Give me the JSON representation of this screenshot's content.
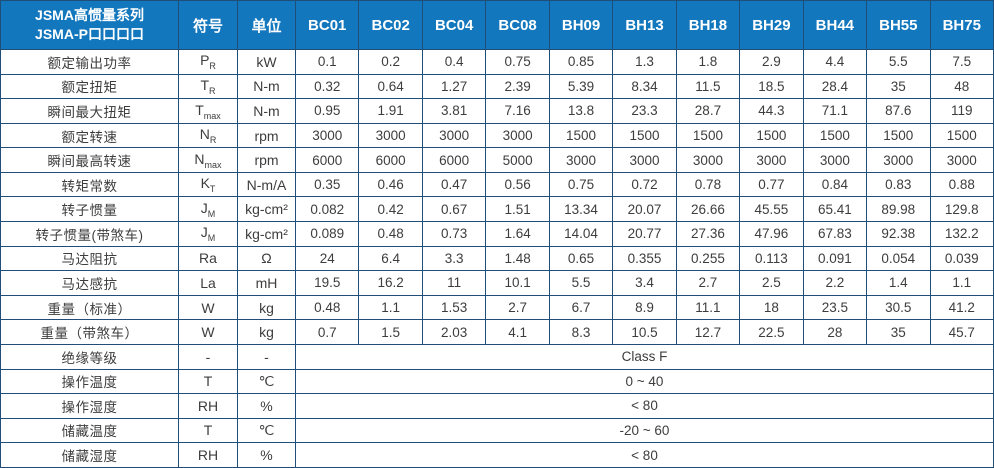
{
  "table": {
    "colors": {
      "header_bg": "#1377bd",
      "border": "#1f4e79",
      "text": "#3d3d3d"
    },
    "header": {
      "title_line1": "JSMA高惯量系列",
      "title_line2": "JSMA-P口口口口",
      "symbol_col": "符号",
      "unit_col": "单位",
      "models": [
        "BC01",
        "BC02",
        "BC04",
        "BC08",
        "BH09",
        "BH13",
        "BH18",
        "BH29",
        "BH44",
        "BH55",
        "BH75"
      ]
    },
    "rows": [
      {
        "label": "额定输出功率",
        "symbol": "P",
        "sub": "R",
        "unit": "kW",
        "values": [
          "0.1",
          "0.2",
          "0.4",
          "0.75",
          "0.85",
          "1.3",
          "1.8",
          "2.9",
          "4.4",
          "5.5",
          "7.5"
        ]
      },
      {
        "label": "额定扭矩",
        "symbol": "T",
        "sub": "R",
        "unit": "N-m",
        "values": [
          "0.32",
          "0.64",
          "1.27",
          "2.39",
          "5.39",
          "8.34",
          "11.5",
          "18.5",
          "28.4",
          "35",
          "48"
        ]
      },
      {
        "label": "瞬间最大扭矩",
        "symbol": "T",
        "sub": "max",
        "unit": "N-m",
        "values": [
          "0.95",
          "1.91",
          "3.81",
          "7.16",
          "13.8",
          "23.3",
          "28.7",
          "44.3",
          "71.1",
          "87.6",
          "119"
        ]
      },
      {
        "label": "额定转速",
        "symbol": "N",
        "sub": "R",
        "unit": "rpm",
        "values": [
          "3000",
          "3000",
          "3000",
          "3000",
          "1500",
          "1500",
          "1500",
          "1500",
          "1500",
          "1500",
          "1500"
        ]
      },
      {
        "label": "瞬间最高转速",
        "symbol": "N",
        "sub": "max",
        "unit": "rpm",
        "values": [
          "6000",
          "6000",
          "6000",
          "5000",
          "3000",
          "3000",
          "3000",
          "3000",
          "3000",
          "3000",
          "3000"
        ]
      },
      {
        "label": "转矩常数",
        "symbol": "K",
        "sub": "T",
        "unit": "N-m/A",
        "values": [
          "0.35",
          "0.46",
          "0.47",
          "0.56",
          "0.75",
          "0.72",
          "0.78",
          "0.77",
          "0.84",
          "0.83",
          "0.88"
        ]
      },
      {
        "label": "转子惯量",
        "symbol": "J",
        "sub": "M",
        "unit": "kg-cm²",
        "values": [
          "0.082",
          "0.42",
          "0.67",
          "1.51",
          "13.34",
          "20.07",
          "26.66",
          "45.55",
          "65.41",
          "89.98",
          "129.8"
        ]
      },
      {
        "label": "转子惯量(带煞车)",
        "symbol": "J",
        "sub": "M",
        "unit": "kg-cm²",
        "values": [
          "0.089",
          "0.48",
          "0.73",
          "1.64",
          "14.04",
          "20.77",
          "27.36",
          "47.96",
          "67.83",
          "92.38",
          "132.2"
        ]
      },
      {
        "label": "马达阻抗",
        "symbol": "Ra",
        "sub": "",
        "unit": "Ω",
        "values": [
          "24",
          "6.4",
          "3.3",
          "1.48",
          "0.65",
          "0.355",
          "0.255",
          "0.113",
          "0.091",
          "0.054",
          "0.039"
        ]
      },
      {
        "label": "马达感抗",
        "symbol": "La",
        "sub": "",
        "unit": "mH",
        "values": [
          "19.5",
          "16.2",
          "11",
          "10.1",
          "5.5",
          "3.4",
          "2.7",
          "2.5",
          "2.2",
          "1.4",
          "1.1"
        ]
      },
      {
        "label": "重量（标准）",
        "symbol": "W",
        "sub": "",
        "unit": "kg",
        "values": [
          "0.48",
          "1.1",
          "1.53",
          "2.7",
          "6.7",
          "8.9",
          "11.1",
          "18",
          "23.5",
          "30.5",
          "41.2"
        ]
      },
      {
        "label": "重量（带煞车）",
        "symbol": "W",
        "sub": "",
        "unit": "kg",
        "values": [
          "0.7",
          "1.5",
          "2.03",
          "4.1",
          "8.3",
          "10.5",
          "12.7",
          "22.5",
          "28",
          "35",
          "45.7"
        ]
      },
      {
        "label": "绝缘等级",
        "symbol": "-",
        "sub": "",
        "unit": "-",
        "span": "Class F"
      },
      {
        "label": "操作温度",
        "symbol": "T",
        "sub": "",
        "unit": "℃",
        "span": "0 ~ 40"
      },
      {
        "label": "操作湿度",
        "symbol": "RH",
        "sub": "",
        "unit": "%",
        "span": "< 80"
      },
      {
        "label": "储藏温度",
        "symbol": "T",
        "sub": "",
        "unit": "℃",
        "span": "-20 ~ 60"
      },
      {
        "label": "储藏湿度",
        "symbol": "RH",
        "sub": "",
        "unit": "%",
        "span": "< 80"
      }
    ]
  }
}
